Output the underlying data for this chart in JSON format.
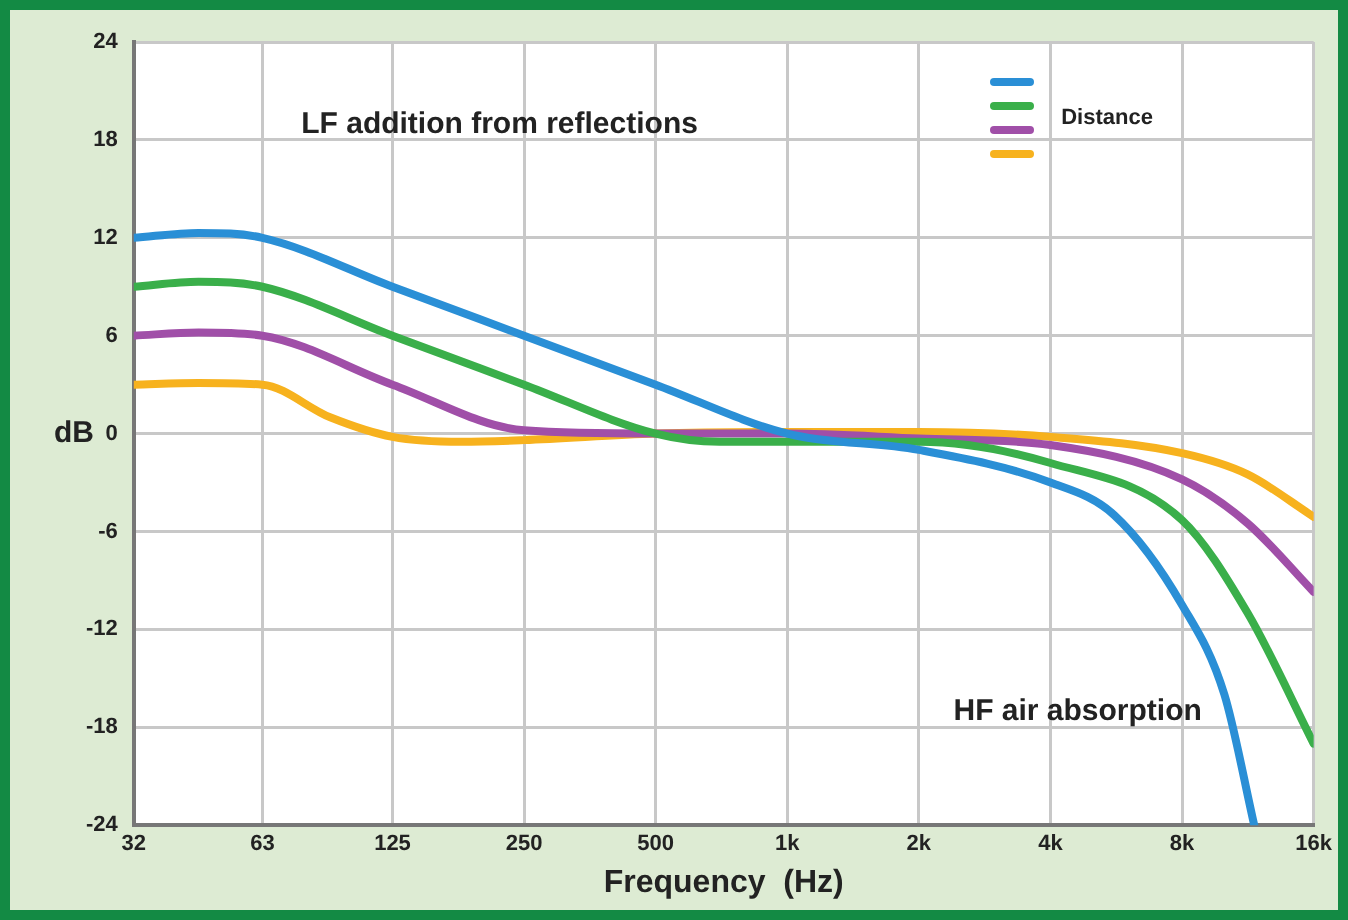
{
  "chart_data": {
    "type": "line",
    "xlabel": "Frequency  (Hz)",
    "ylabel": "dB",
    "legend_title": "Distance",
    "annotations": [
      "LF addition from reflections",
      "HF air absorption"
    ],
    "log": "x",
    "grid": true,
    "marker": "none",
    "line_style": "solid",
    "xlim": [
      32,
      16000
    ],
    "xticks": [
      32,
      63,
      125,
      250,
      500,
      {
        "value": 1000,
        "label": "1k"
      },
      {
        "value": 2000,
        "label": "2k"
      },
      {
        "value": 4000,
        "label": "4k"
      },
      {
        "value": 8000,
        "label": "8k"
      },
      {
        "value": 16000,
        "label": "16k"
      }
    ],
    "ylim": [
      -24,
      24
    ],
    "yticks": [
      -24,
      -18,
      -12,
      -6,
      0,
      6,
      12,
      18,
      24
    ],
    "series": [
      {
        "color": "#2a8fd6",
        "x": [
          32,
          45,
          63,
          125,
          250,
          500,
          1000,
          2000,
          4000,
          5600,
          8000,
          10000,
          11700
        ],
        "values": [
          12,
          12.3,
          12,
          9,
          6,
          3,
          0,
          -1,
          -3,
          -5,
          -10.5,
          -16,
          -24
        ]
      },
      {
        "color": "#3aaf4a",
        "x": [
          32,
          45,
          63,
          125,
          250,
          500,
          700,
          1000,
          2000,
          4000,
          8000,
          11300,
          16000
        ],
        "values": [
          9,
          9.3,
          9,
          6,
          3,
          0,
          -0.5,
          -0.5,
          -0.5,
          -1.8,
          -5.3,
          -11,
          -19
        ]
      },
      {
        "color": "#a04fa8",
        "x": [
          32,
          45,
          63,
          125,
          250,
          500,
          1000,
          2000,
          4000,
          8000,
          11300,
          16000
        ],
        "values": [
          6,
          6.2,
          6,
          3,
          0.2,
          0,
          0,
          -0.3,
          -0.7,
          -2.8,
          -5.5,
          -9.7
        ]
      },
      {
        "color": "#f7b21e",
        "x": [
          32,
          45,
          63,
          90,
          125,
          180,
          250,
          500,
          1000,
          2000,
          4000,
          8000,
          11300,
          16000
        ],
        "values": [
          3,
          3.1,
          3,
          1,
          -0.2,
          -0.5,
          -0.4,
          0,
          0.1,
          0.1,
          -0.2,
          -1.2,
          -2.5,
          -5.1
        ]
      }
    ]
  }
}
